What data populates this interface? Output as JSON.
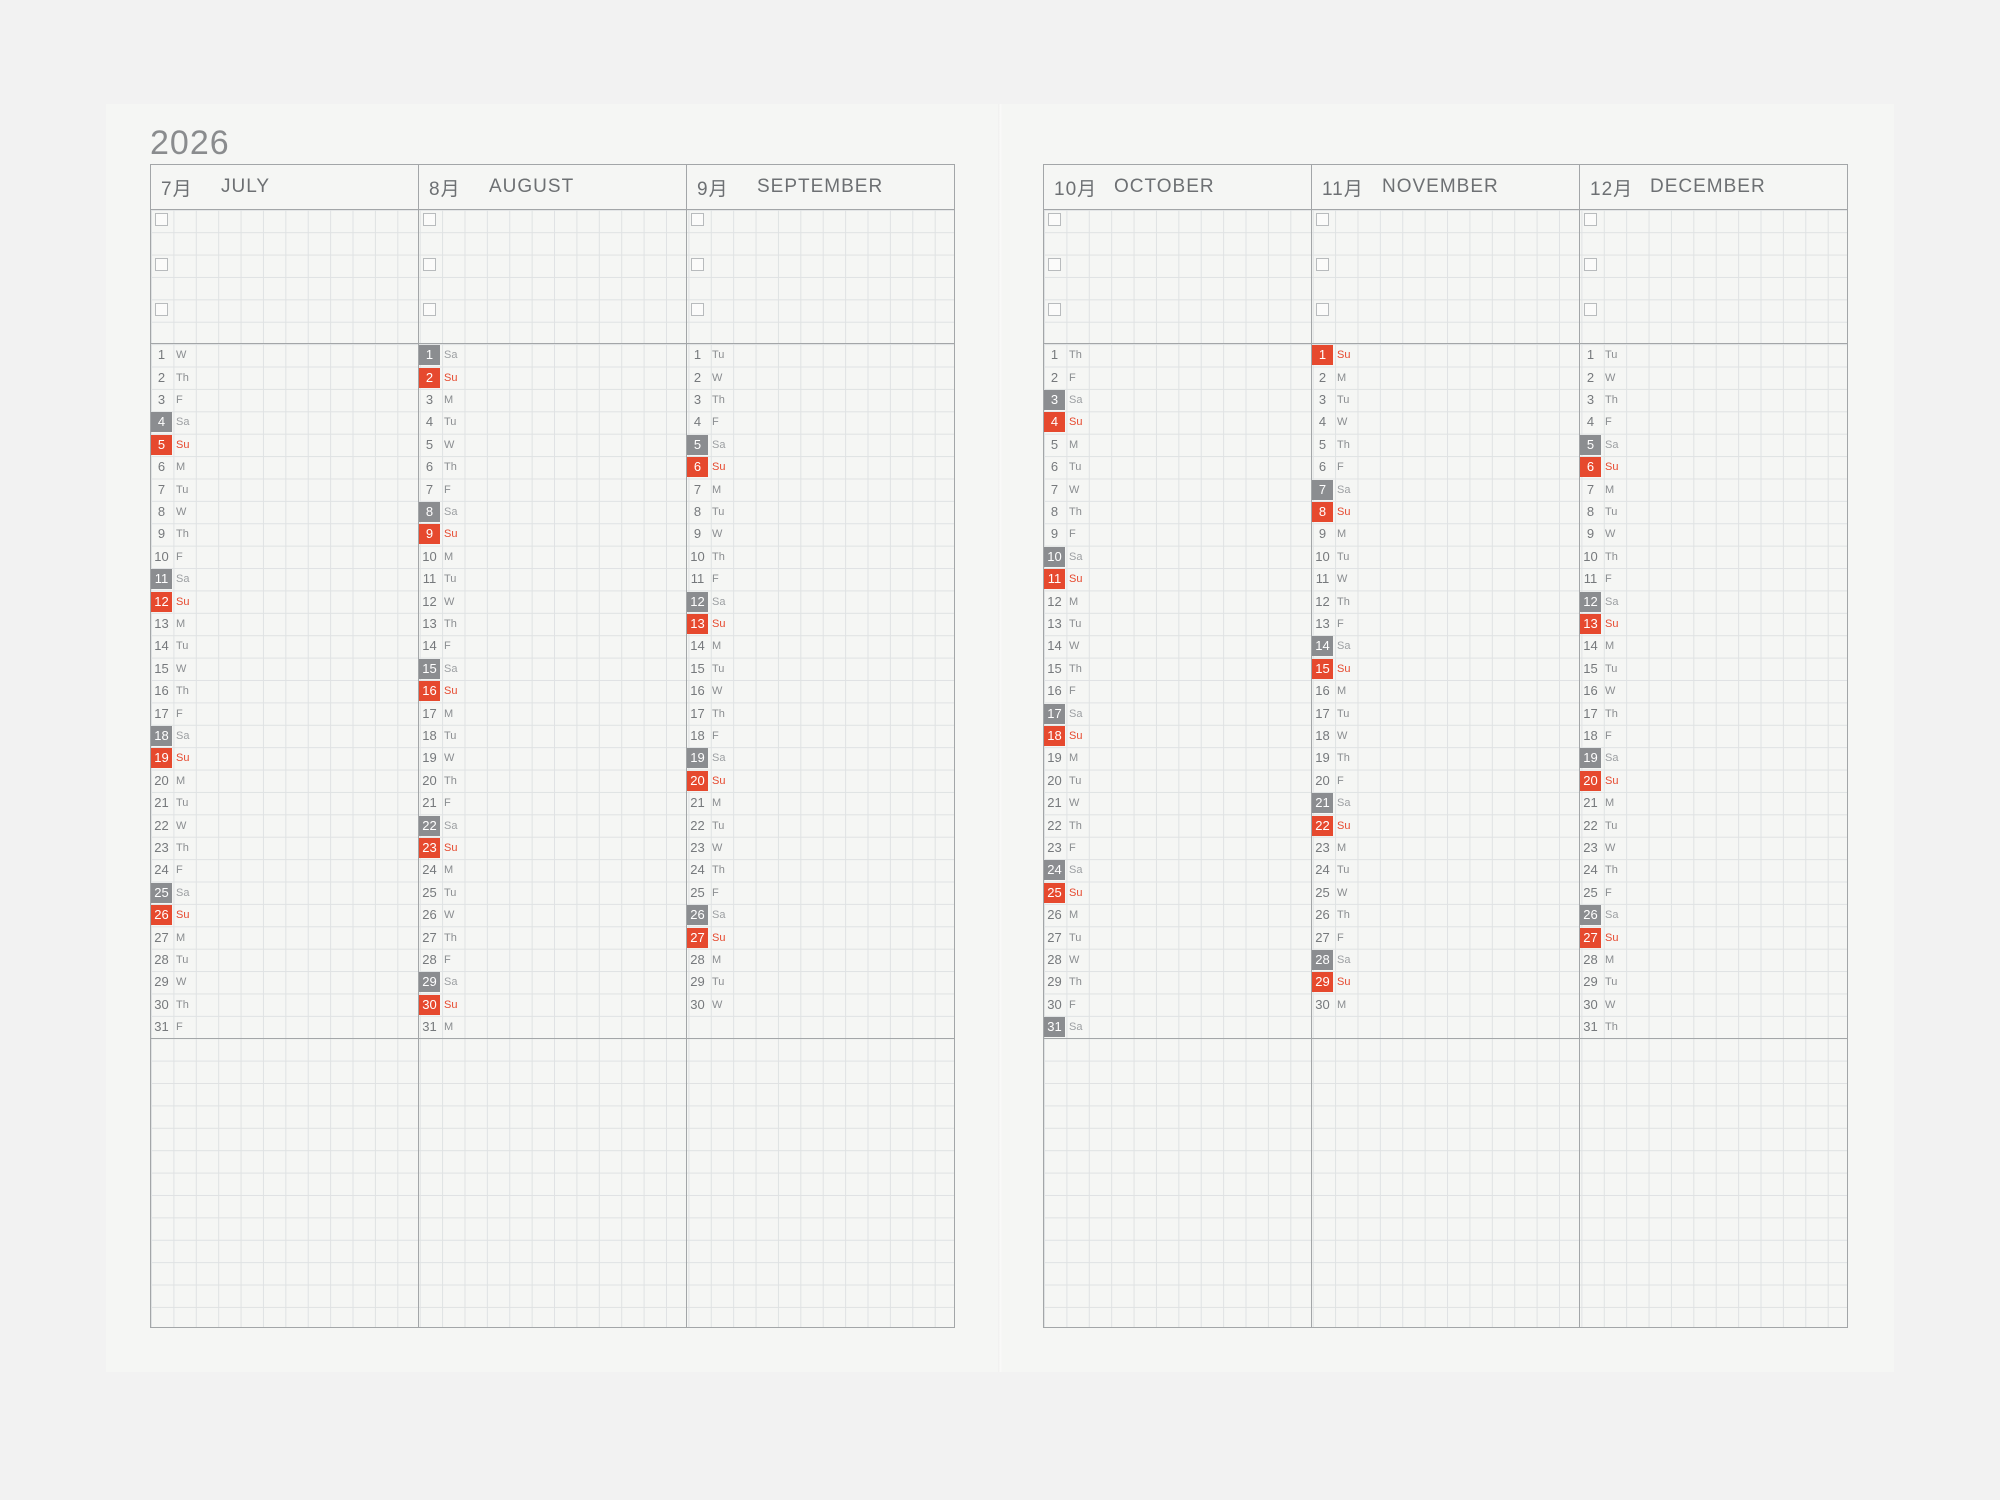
{
  "year": "2026",
  "colors": {
    "background": "#f2f2f2",
    "paper": "#f5f6f4",
    "grid_line": "#dfe2e3",
    "rule_line": "#a3a6a8",
    "saturday_fill": "#8b8d90",
    "sunday_fill": "#e6492e"
  },
  "pages": [
    {
      "months": [
        {
          "num": "7月",
          "name": "JULY",
          "start": 3,
          "length": 31
        },
        {
          "num": "8月",
          "name": "AUGUST",
          "start": 6,
          "length": 31
        },
        {
          "num": "9月",
          "name": "SEPTEMBER",
          "start": 2,
          "length": 30
        }
      ]
    },
    {
      "months": [
        {
          "num": "10月",
          "name": "OCTOBER",
          "start": 4,
          "length": 31
        },
        {
          "num": "11月",
          "name": "NOVEMBER",
          "start": 0,
          "length": 30
        },
        {
          "num": "12月",
          "name": "DECEMBER",
          "start": 2,
          "length": 31
        }
      ]
    }
  ],
  "weekday_labels": [
    "Su",
    "M",
    "Tu",
    "W",
    "Th",
    "F",
    "Sa"
  ],
  "checkboxes_per_month": 3
}
